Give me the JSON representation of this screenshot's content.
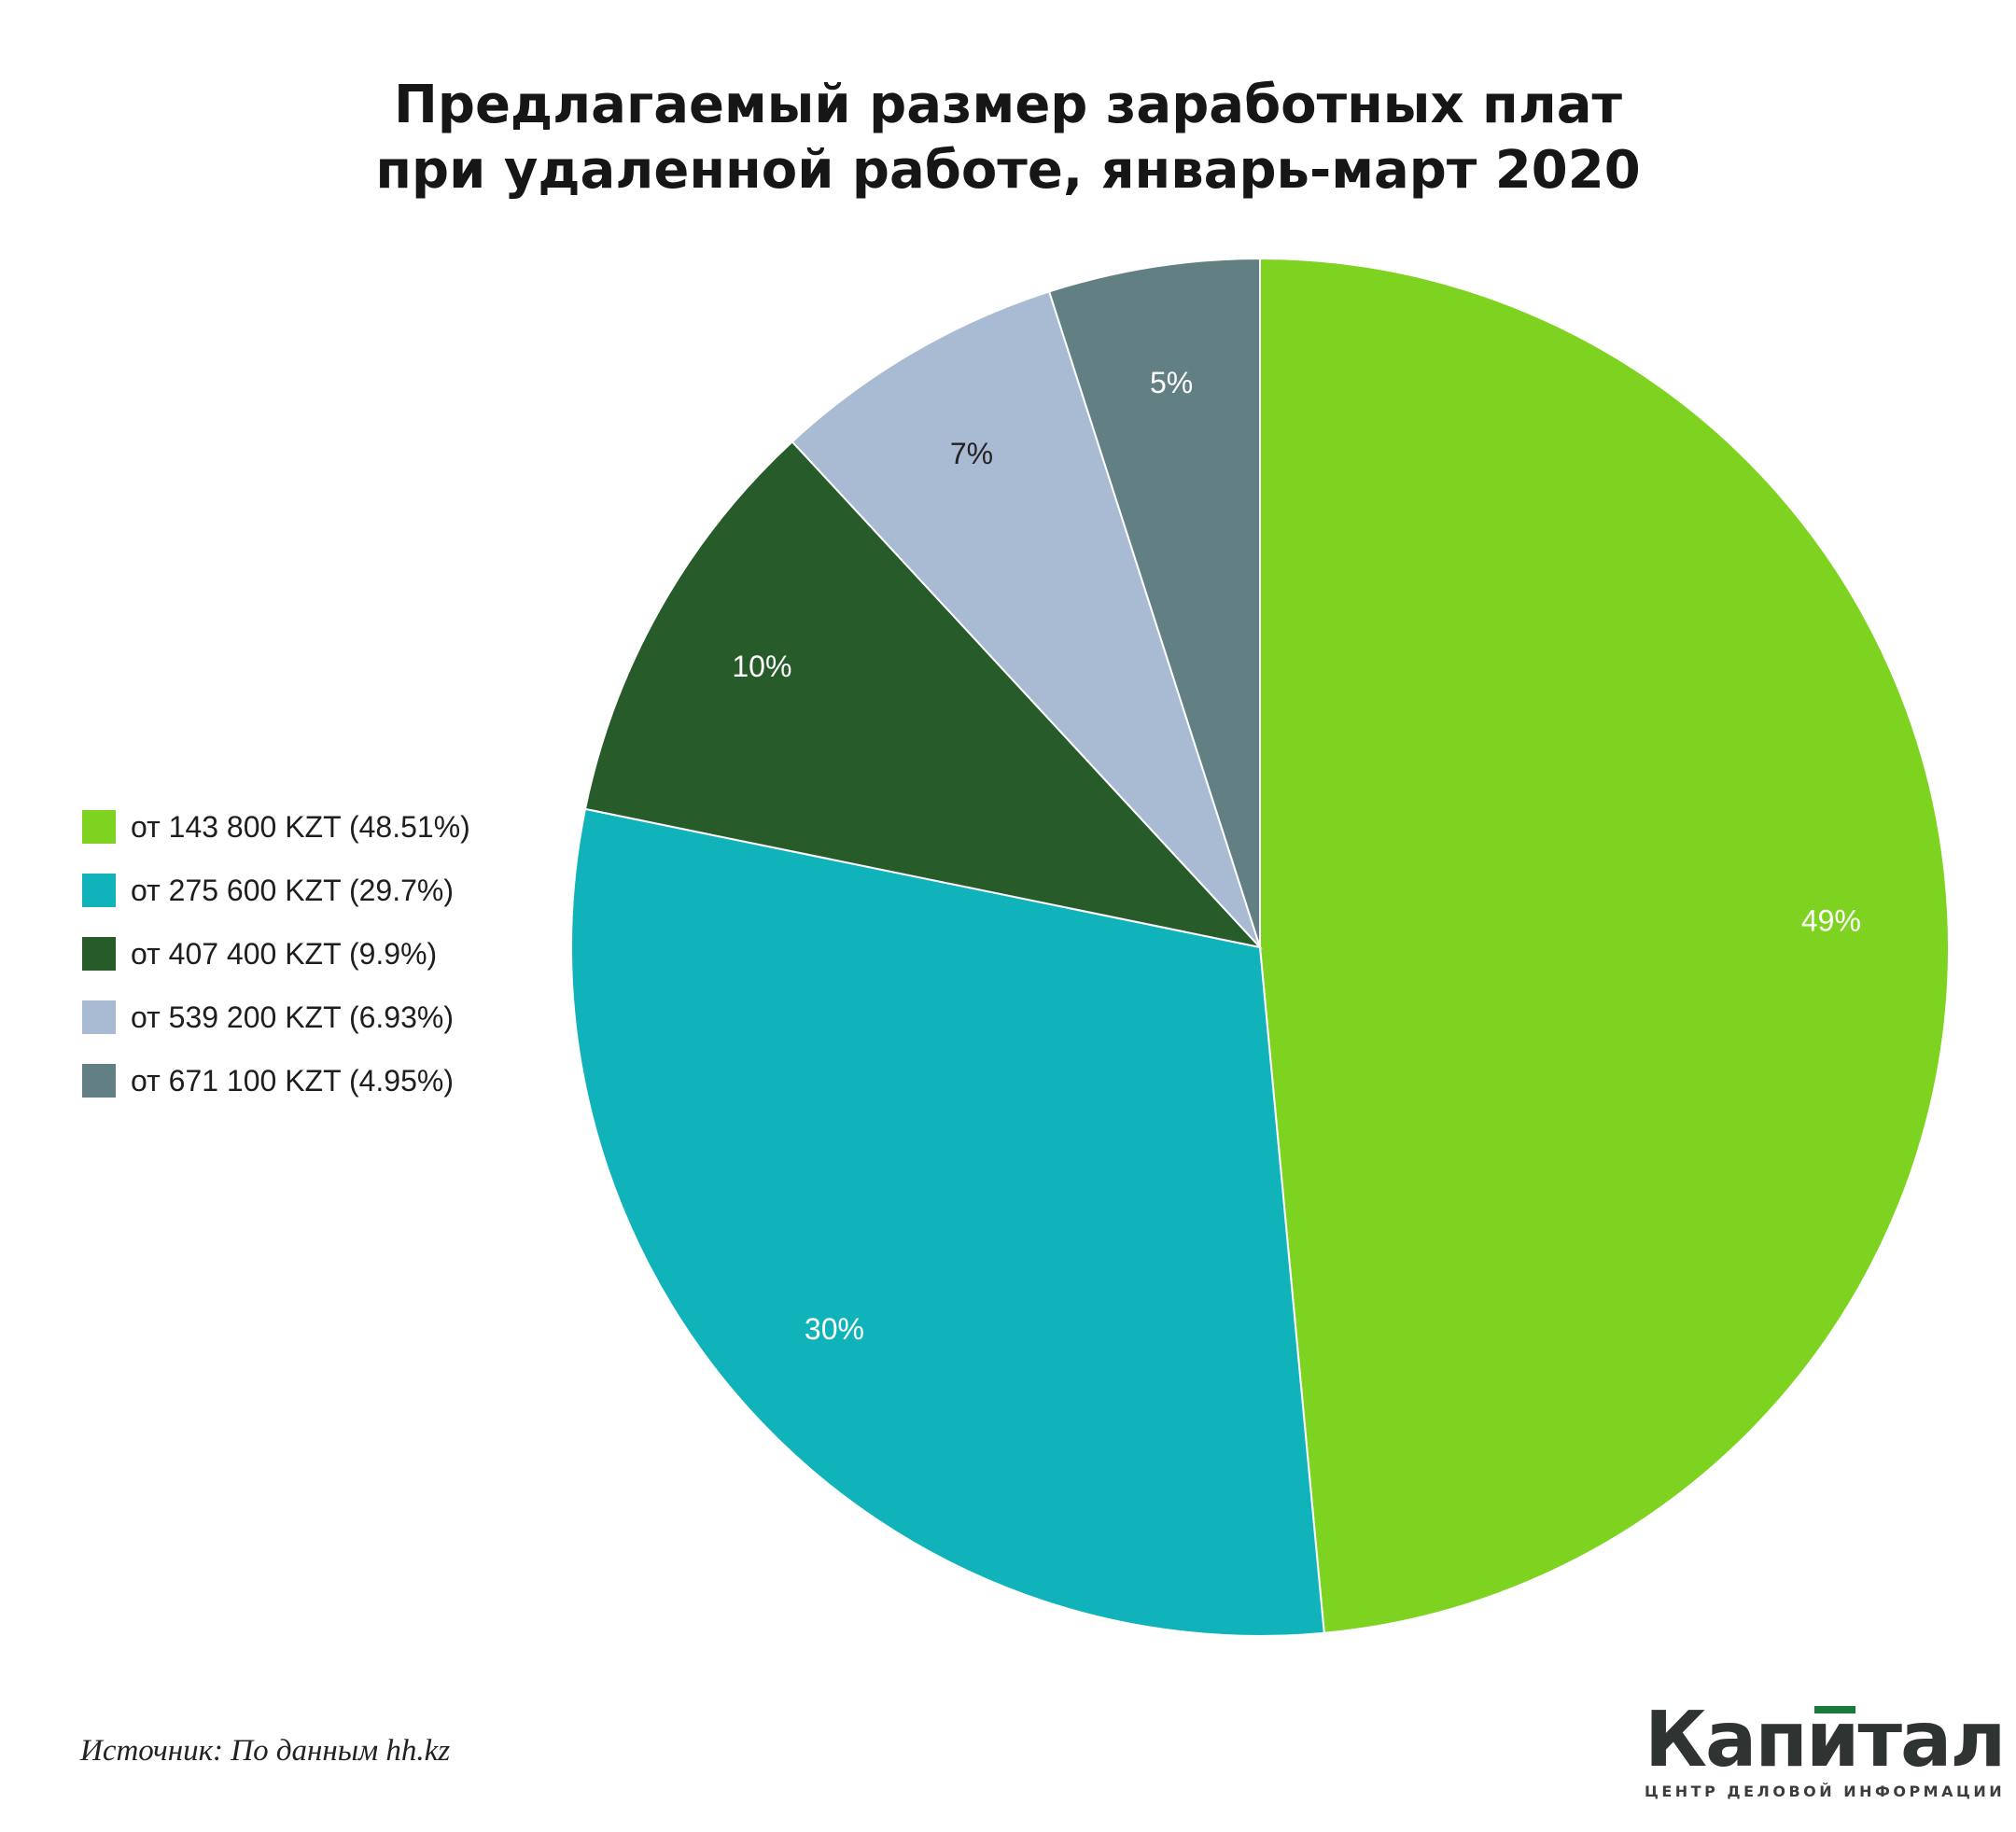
{
  "title_lines": [
    "Предлагаемый размер заработных плат",
    "при удаленной работе, январь-март 2020"
  ],
  "chart_data": {
    "type": "pie",
    "title": "Предлагаемый размер заработных плат при удаленной работе, январь-март 2020",
    "slices": [
      {
        "label": "от 143 800 KZT (48.51%)",
        "value": 48.51,
        "data_label": "49%",
        "color": "#7ed321"
      },
      {
        "label": "от 275 600 KZT (29.7%)",
        "value": 29.7,
        "data_label": "30%",
        "color": "#11b3bb"
      },
      {
        "label": "от 407 400 KZT (9.9%)",
        "value": 9.9,
        "data_label": "10%",
        "color": "#285b2a"
      },
      {
        "label": "от 539 200 KZT (6.93%)",
        "value": 6.93,
        "data_label": "7%",
        "color": "#a9bbd3"
      },
      {
        "label": "от 671 100 KZT (4.95%)",
        "value": 4.95,
        "data_label": "5%",
        "color": "#627f84"
      }
    ],
    "legend_position": "left",
    "start_angle": "12 o'clock, clockwise"
  },
  "source_text": "Источник: По данным hh.kz",
  "logo": {
    "name": "Капитал",
    "tagline": "ЦЕНТР ДЕЛОВОЙ ИНФОРМАЦИИ",
    "accent_color": "#1a7a3c"
  }
}
